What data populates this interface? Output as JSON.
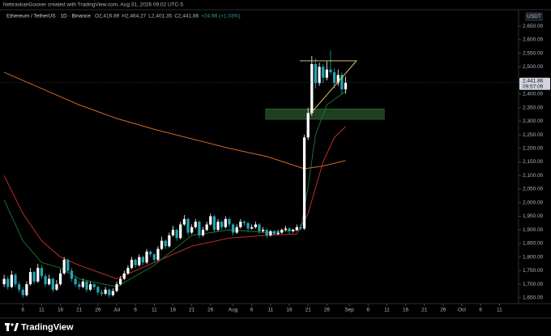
{
  "header": "NebraskanGooner created with TradingView.com, Aug 31, 2026 09:02 UTC-5",
  "footer_brand": "TradingView",
  "chart_data": {
    "type": "candlestick",
    "symbol": "Ethereum / TetherUS · 1D · Binance",
    "ohlc_legend": [
      "O2,416.89",
      "H2,464.27",
      "L2,401.35",
      "C2,441.86",
      "+24.98 (+1.03%)"
    ],
    "currency": "USDT",
    "last_price_label": "2,441.86",
    "countdown": "09:57:09",
    "up_color": "#ffffff",
    "down_color": "#22a6b3",
    "grid": false,
    "xlim": [
      -1.1,
      137.1
    ],
    "ylim": [
      1629,
      2710
    ],
    "xticks": [
      {
        "value": 5,
        "label": "6"
      },
      {
        "value": 10,
        "label": "11"
      },
      {
        "value": 15,
        "label": "16"
      },
      {
        "value": 20,
        "label": "21"
      },
      {
        "value": 25,
        "label": "26"
      },
      {
        "value": 30,
        "label": "Jul"
      },
      {
        "value": 35,
        "label": "6"
      },
      {
        "value": 40,
        "label": "11"
      },
      {
        "value": 45,
        "label": "16"
      },
      {
        "value": 50,
        "label": "21"
      },
      {
        "value": 55,
        "label": "26"
      },
      {
        "value": 61,
        "label": "Aug"
      },
      {
        "value": 66,
        "label": "6"
      },
      {
        "value": 71,
        "label": "11"
      },
      {
        "value": 76,
        "label": "16"
      },
      {
        "value": 81,
        "label": "21"
      },
      {
        "value": 86,
        "label": "26"
      },
      {
        "value": 92,
        "label": "Sep"
      },
      {
        "value": 97,
        "label": "6"
      },
      {
        "value": 102,
        "label": "11"
      },
      {
        "value": 107,
        "label": "16"
      },
      {
        "value": 112,
        "label": "21"
      },
      {
        "value": 117,
        "label": "26"
      },
      {
        "value": 122,
        "label": "Oct"
      },
      {
        "value": 127,
        "label": "6"
      },
      {
        "value": 132,
        "label": "11"
      }
    ],
    "yticks": [
      {
        "value": 1650,
        "label": "1,650.00"
      },
      {
        "value": 1700,
        "label": "1,700.00"
      },
      {
        "value": 1750,
        "label": "1,750.00"
      },
      {
        "value": 1800,
        "label": "1,800.00"
      },
      {
        "value": 1850,
        "label": "1,850.00"
      },
      {
        "value": 1900,
        "label": "1,900.00"
      },
      {
        "value": 1950,
        "label": "1,950.00"
      },
      {
        "value": 2000,
        "label": "2,000.00"
      },
      {
        "value": 2050,
        "label": "2,050.00"
      },
      {
        "value": 2100,
        "label": "2,100.00"
      },
      {
        "value": 2150,
        "label": "2,150.00"
      },
      {
        "value": 2200,
        "label": "2,200.00"
      },
      {
        "value": 2250,
        "label": "2,250.00"
      },
      {
        "value": 2300,
        "label": "2,300.00"
      },
      {
        "value": 2350,
        "label": "2,350.00"
      },
      {
        "value": 2400,
        "label": "2,400.00"
      },
      {
        "value": 2500,
        "label": "2,500.00"
      },
      {
        "value": 2550,
        "label": "2,550.00"
      },
      {
        "value": 2600,
        "label": "2,600.00"
      },
      {
        "value": 2650,
        "label": "2,650.00"
      }
    ],
    "x": [
      0,
      1,
      2,
      3,
      4,
      5,
      6,
      7,
      8,
      9,
      10,
      11,
      12,
      13,
      14,
      15,
      16,
      17,
      18,
      19,
      20,
      21,
      22,
      23,
      24,
      25,
      26,
      27,
      28,
      29,
      30,
      31,
      32,
      33,
      34,
      35,
      36,
      37,
      38,
      39,
      40,
      41,
      42,
      43,
      44,
      45,
      46,
      47,
      48,
      49,
      50,
      51,
      52,
      53,
      54,
      55,
      56,
      57,
      58,
      59,
      60,
      61,
      62,
      63,
      64,
      65,
      66,
      67,
      68,
      69,
      70,
      71,
      72,
      73,
      74,
      75,
      76,
      77,
      78,
      79,
      80,
      81,
      82,
      83,
      84,
      85,
      86,
      87,
      88,
      89,
      90,
      91
    ],
    "ohlc": [
      [
        1700,
        1735,
        1690,
        1720
      ],
      [
        1720,
        1730,
        1680,
        1690
      ],
      [
        1690,
        1750,
        1685,
        1735
      ],
      [
        1735,
        1740,
        1690,
        1700
      ],
      [
        1700,
        1710,
        1670,
        1680
      ],
      [
        1680,
        1690,
        1650,
        1660
      ],
      [
        1660,
        1710,
        1655,
        1700
      ],
      [
        1700,
        1760,
        1695,
        1745
      ],
      [
        1745,
        1750,
        1700,
        1710
      ],
      [
        1710,
        1775,
        1705,
        1760
      ],
      [
        1760,
        1770,
        1720,
        1730
      ],
      [
        1730,
        1740,
        1690,
        1700
      ],
      [
        1700,
        1735,
        1695,
        1720
      ],
      [
        1720,
        1725,
        1670,
        1680
      ],
      [
        1680,
        1715,
        1675,
        1700
      ],
      [
        1700,
        1755,
        1695,
        1740
      ],
      [
        1740,
        1800,
        1735,
        1790
      ],
      [
        1790,
        1795,
        1740,
        1750
      ],
      [
        1750,
        1760,
        1710,
        1720
      ],
      [
        1720,
        1730,
        1690,
        1700
      ],
      [
        1700,
        1710,
        1680,
        1690
      ],
      [
        1690,
        1720,
        1685,
        1710
      ],
      [
        1710,
        1715,
        1670,
        1680
      ],
      [
        1680,
        1710,
        1675,
        1700
      ],
      [
        1700,
        1705,
        1680,
        1690
      ],
      [
        1690,
        1695,
        1660,
        1670
      ],
      [
        1670,
        1680,
        1655,
        1665
      ],
      [
        1665,
        1690,
        1660,
        1680
      ],
      [
        1680,
        1685,
        1650,
        1660
      ],
      [
        1660,
        1685,
        1655,
        1675
      ],
      [
        1675,
        1710,
        1670,
        1700
      ],
      [
        1700,
        1730,
        1695,
        1720
      ],
      [
        1720,
        1750,
        1715,
        1740
      ],
      [
        1740,
        1770,
        1735,
        1760
      ],
      [
        1760,
        1800,
        1755,
        1790
      ],
      [
        1790,
        1795,
        1760,
        1770
      ],
      [
        1770,
        1810,
        1765,
        1800
      ],
      [
        1800,
        1805,
        1770,
        1780
      ],
      [
        1780,
        1830,
        1775,
        1820
      ],
      [
        1820,
        1825,
        1800,
        1810
      ],
      [
        1810,
        1815,
        1780,
        1790
      ],
      [
        1790,
        1840,
        1785,
        1830
      ],
      [
        1830,
        1875,
        1825,
        1860
      ],
      [
        1860,
        1865,
        1830,
        1840
      ],
      [
        1840,
        1890,
        1835,
        1880
      ],
      [
        1880,
        1915,
        1875,
        1900
      ],
      [
        1900,
        1905,
        1860,
        1870
      ],
      [
        1870,
        1930,
        1865,
        1920
      ],
      [
        1920,
        1955,
        1915,
        1940
      ],
      [
        1940,
        1945,
        1880,
        1890
      ],
      [
        1890,
        1920,
        1885,
        1910
      ],
      [
        1910,
        1940,
        1905,
        1930
      ],
      [
        1930,
        1935,
        1870,
        1880
      ],
      [
        1880,
        1910,
        1875,
        1900
      ],
      [
        1900,
        1930,
        1895,
        1920
      ],
      [
        1920,
        1960,
        1915,
        1950
      ],
      [
        1950,
        1955,
        1890,
        1900
      ],
      [
        1900,
        1940,
        1895,
        1930
      ],
      [
        1930,
        1935,
        1900,
        1910
      ],
      [
        1910,
        1950,
        1905,
        1940
      ],
      [
        1940,
        1945,
        1910,
        1920
      ],
      [
        1920,
        1925,
        1880,
        1890
      ],
      [
        1890,
        1920,
        1885,
        1910
      ],
      [
        1910,
        1940,
        1905,
        1930
      ],
      [
        1930,
        1935,
        1915,
        1925
      ],
      [
        1925,
        1930,
        1895,
        1905
      ],
      [
        1905,
        1920,
        1900,
        1910
      ],
      [
        1910,
        1930,
        1905,
        1920
      ],
      [
        1920,
        1925,
        1885,
        1895
      ],
      [
        1895,
        1910,
        1890,
        1900
      ],
      [
        1900,
        1905,
        1870,
        1880
      ],
      [
        1880,
        1900,
        1875,
        1895
      ],
      [
        1895,
        1900,
        1880,
        1885
      ],
      [
        1885,
        1900,
        1880,
        1890
      ],
      [
        1890,
        1905,
        1885,
        1900
      ],
      [
        1900,
        1915,
        1895,
        1905
      ],
      [
        1905,
        1910,
        1885,
        1895
      ],
      [
        1895,
        1905,
        1890,
        1900
      ],
      [
        1900,
        1920,
        1895,
        1910
      ],
      [
        1910,
        1920,
        1900,
        1905
      ],
      [
        1905,
        2250,
        1900,
        2240
      ],
      [
        2240,
        2350,
        2230,
        2330
      ],
      [
        2330,
        2540,
        2320,
        2510
      ],
      [
        2510,
        2530,
        2420,
        2440
      ],
      [
        2440,
        2515,
        2430,
        2500
      ],
      [
        2500,
        2510,
        2440,
        2460
      ],
      [
        2460,
        2520,
        2450,
        2490
      ],
      [
        2490,
        2560,
        2470,
        2480
      ],
      [
        2480,
        2495,
        2420,
        2440
      ],
      [
        2440,
        2490,
        2430,
        2470
      ],
      [
        2470,
        2480,
        2400,
        2416.89
      ],
      [
        2416.89,
        2464.27,
        2401.35,
        2441.86
      ]
    ],
    "moving_averages": [
      {
        "color": "#e8762c",
        "x": [
          0,
          10,
          20,
          30,
          40,
          50,
          60,
          70,
          80,
          85,
          91
        ],
        "values": [
          2480,
          2420,
          2360,
          2310,
          2270,
          2235,
          2200,
          2170,
          2125,
          2135,
          2155
        ]
      },
      {
        "color": "#d32f2f",
        "x": [
          0,
          5,
          10,
          15,
          20,
          30,
          40,
          50,
          60,
          70,
          78,
          81,
          85,
          88,
          91
        ],
        "values": [
          2100,
          1960,
          1860,
          1800,
          1770,
          1720,
          1780,
          1840,
          1870,
          1880,
          1885,
          1960,
          2150,
          2240,
          2280
        ]
      },
      {
        "color": "#1b7a3a",
        "x": [
          0,
          5,
          10,
          15,
          20,
          30,
          40,
          50,
          60,
          70,
          79,
          81,
          83,
          86,
          91
        ],
        "values": [
          2010,
          1860,
          1780,
          1760,
          1720,
          1690,
          1770,
          1880,
          1900,
          1890,
          1900,
          2060,
          2250,
          2360,
          2410
        ]
      }
    ],
    "zone": {
      "x": [
        69.7,
        101.3
      ],
      "price": [
        2307,
        2345
      ],
      "color": "#234a26"
    },
    "triangle": {
      "x": [
        78.8,
        93.9,
        81.6
      ],
      "price": [
        2522,
        2522,
        2327
      ],
      "color": "#f2d36b"
    }
  }
}
